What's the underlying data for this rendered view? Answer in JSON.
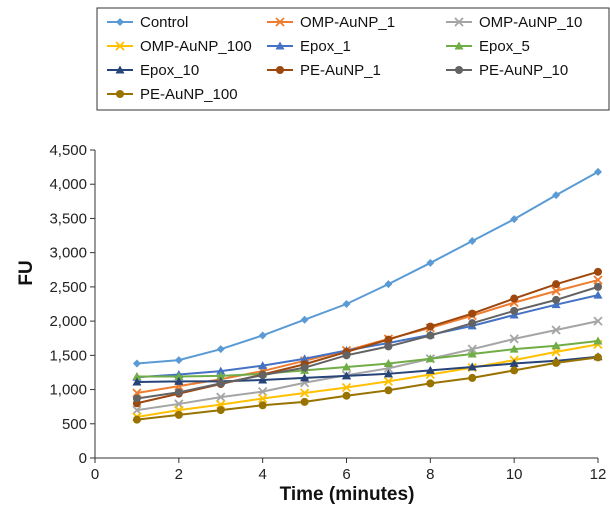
{
  "chart_data": {
    "type": "line",
    "xlabel": "Time (minutes)",
    "ylabel": "FU",
    "xlim": [
      0,
      12
    ],
    "ylim": [
      0,
      4500
    ],
    "xticks": [
      0,
      2,
      4,
      6,
      8,
      10,
      12
    ],
    "xtick_labels": [
      "0",
      "2",
      "4",
      "6",
      "8",
      "10",
      "12"
    ],
    "yticks": [
      0,
      500,
      1000,
      1500,
      2000,
      2500,
      3000,
      3500,
      4000,
      4500
    ],
    "ytick_labels": [
      "0",
      "500",
      "1,000",
      "1,500",
      "2,000",
      "2,500",
      "3,000",
      "3,500",
      "4,000",
      "4,500"
    ],
    "grid": false,
    "legend_position": "top",
    "x": [
      1,
      2,
      3,
      4,
      5,
      6,
      7,
      8,
      9,
      10,
      11,
      12
    ],
    "series": [
      {
        "name": "Control",
        "color": "#5b9bd5",
        "marker": "diamond",
        "values": [
          1380,
          1430,
          1590,
          1790,
          2020,
          2250,
          2540,
          2850,
          3170,
          3490,
          3840,
          4180
        ]
      },
      {
        "name": "OMP-AuNP_1",
        "color": "#ed7d31",
        "marker": "x",
        "values": [
          950,
          1050,
          1150,
          1270,
          1420,
          1570,
          1740,
          1900,
          2080,
          2270,
          2440,
          2600
        ]
      },
      {
        "name": "OMP-AuNP_10",
        "color": "#a5a5a5",
        "marker": "x",
        "values": [
          700,
          790,
          890,
          970,
          1100,
          1210,
          1310,
          1450,
          1590,
          1740,
          1870,
          2000
        ]
      },
      {
        "name": "OMP-AuNP_100",
        "color": "#ffc000",
        "marker": "x",
        "values": [
          600,
          700,
          780,
          870,
          950,
          1030,
          1120,
          1220,
          1320,
          1430,
          1550,
          1660
        ]
      },
      {
        "name": "Epox_1",
        "color": "#4472c4",
        "marker": "triangle",
        "values": [
          1180,
          1220,
          1270,
          1350,
          1450,
          1570,
          1680,
          1800,
          1930,
          2090,
          2240,
          2380
        ]
      },
      {
        "name": "Epox_5",
        "color": "#70ad47",
        "marker": "triangle",
        "values": [
          1190,
          1190,
          1200,
          1230,
          1280,
          1330,
          1380,
          1450,
          1520,
          1590,
          1640,
          1710
        ]
      },
      {
        "name": "Epox_10",
        "color": "#264478",
        "marker": "triangle",
        "values": [
          1110,
          1120,
          1120,
          1140,
          1170,
          1200,
          1230,
          1280,
          1330,
          1380,
          1420,
          1480
        ]
      },
      {
        "name": "PE-AuNP_1",
        "color": "#9e480e",
        "marker": "circle",
        "values": [
          800,
          940,
          1080,
          1220,
          1370,
          1550,
          1730,
          1920,
          2110,
          2330,
          2540,
          2720
        ]
      },
      {
        "name": "PE-AuNP_10",
        "color": "#636363",
        "marker": "circle",
        "values": [
          870,
          960,
          1090,
          1210,
          1320,
          1500,
          1630,
          1790,
          1970,
          2150,
          2310,
          2500
        ]
      },
      {
        "name": "PE-AuNP_100",
        "color": "#997300",
        "marker": "circle",
        "values": [
          560,
          630,
          700,
          770,
          820,
          910,
          990,
          1090,
          1170,
          1280,
          1390,
          1470
        ]
      }
    ]
  }
}
